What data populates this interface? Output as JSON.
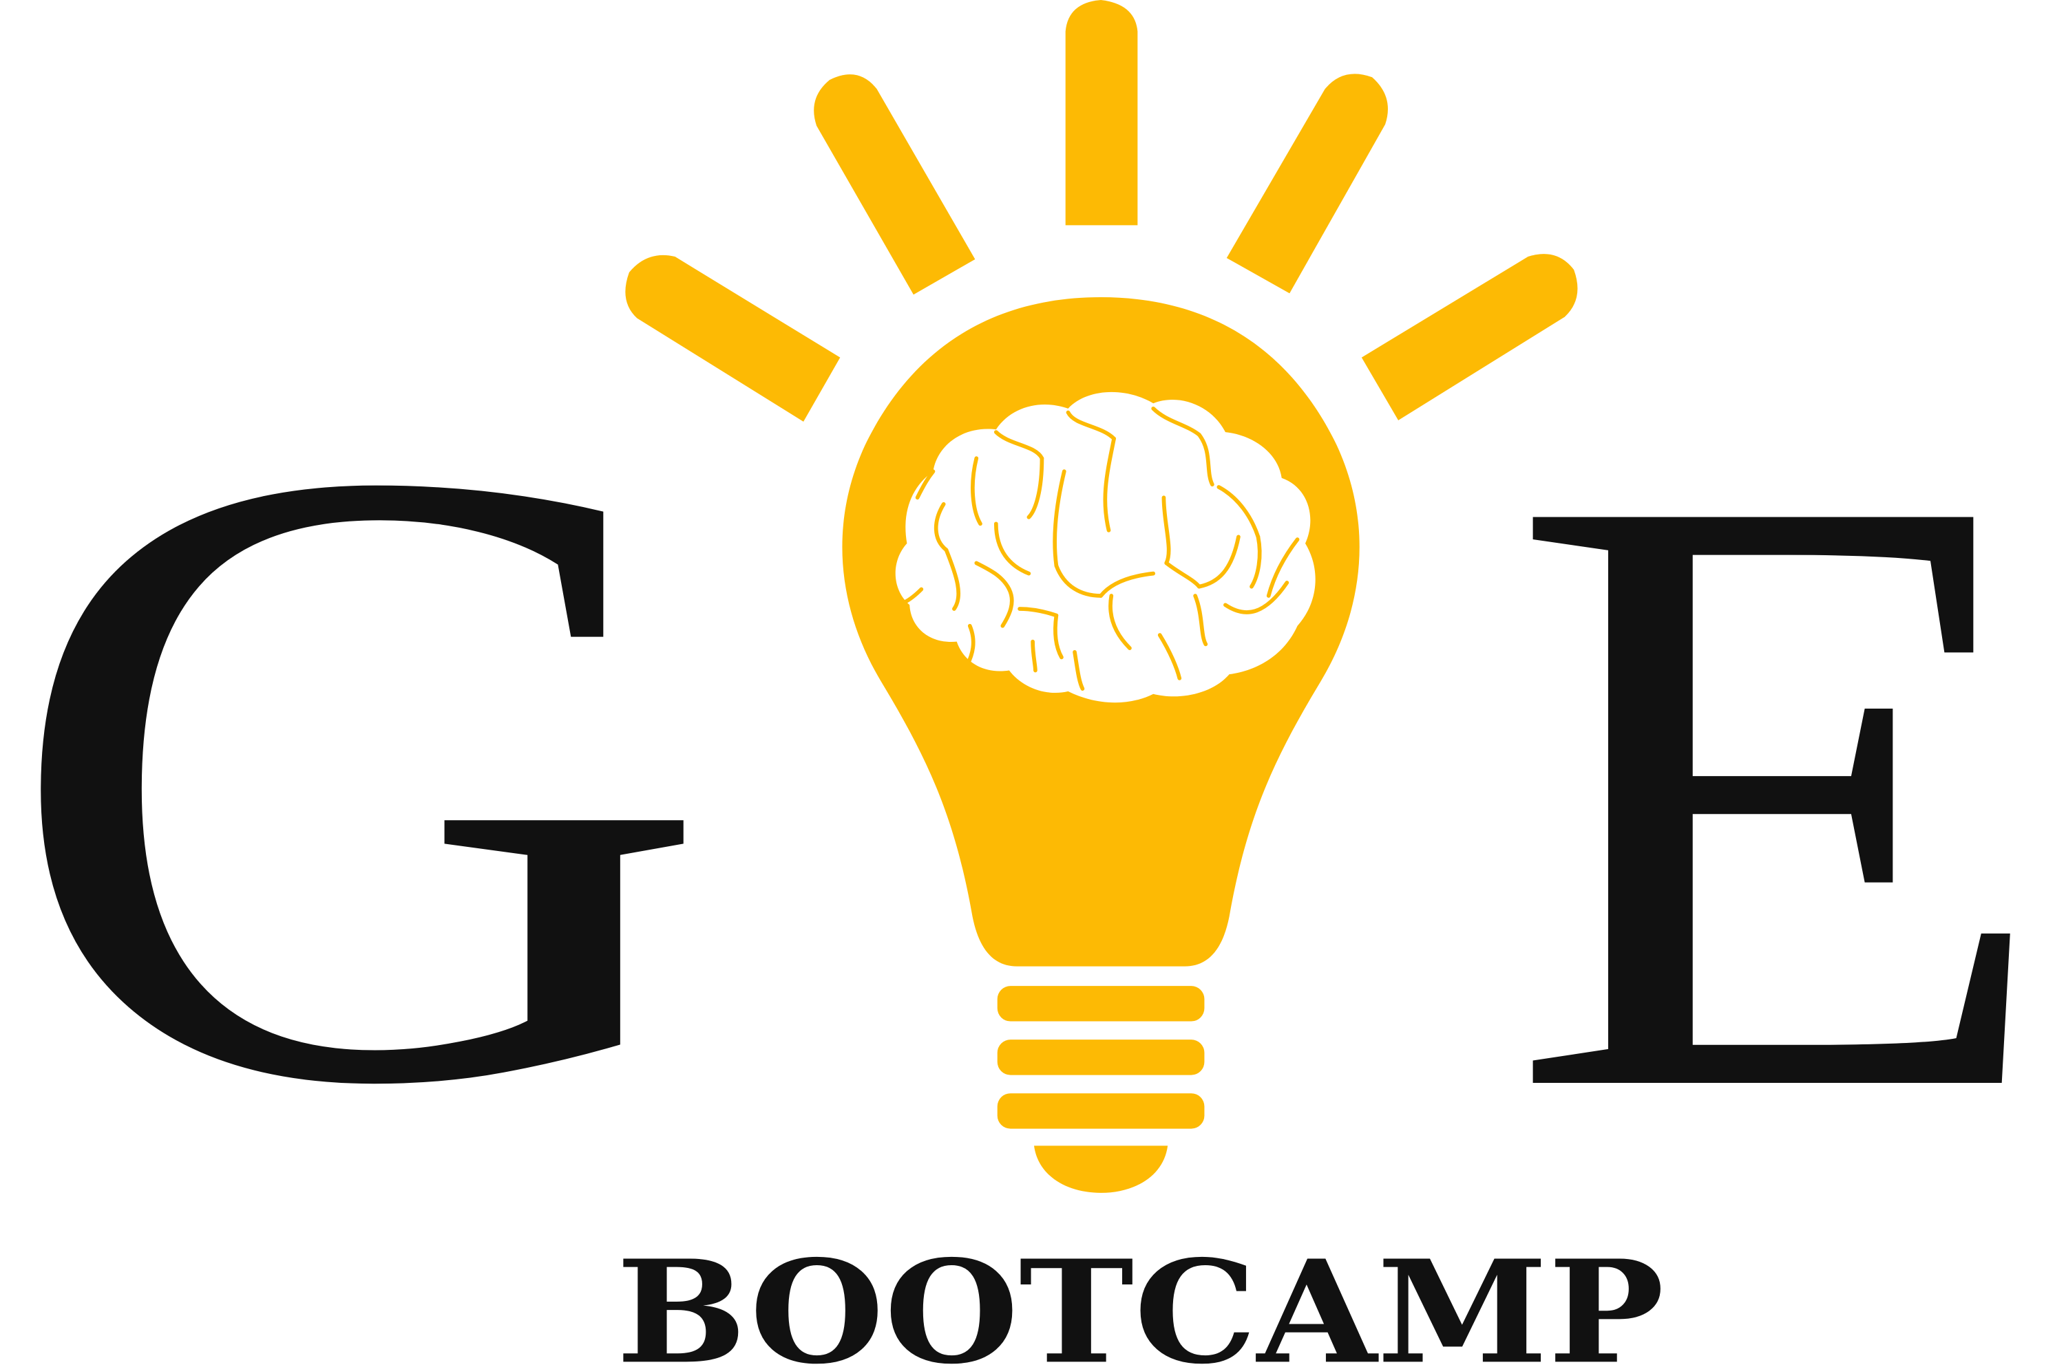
{
  "logo": {
    "letter_left": "G",
    "letter_right": "E",
    "tagline": "BOOTCAMP",
    "icon": "lightbulb-brain-icon",
    "colors": {
      "accent": "#FDBA04",
      "text": "#111111",
      "brain": "#ffffff",
      "background": "#ffffff"
    }
  }
}
